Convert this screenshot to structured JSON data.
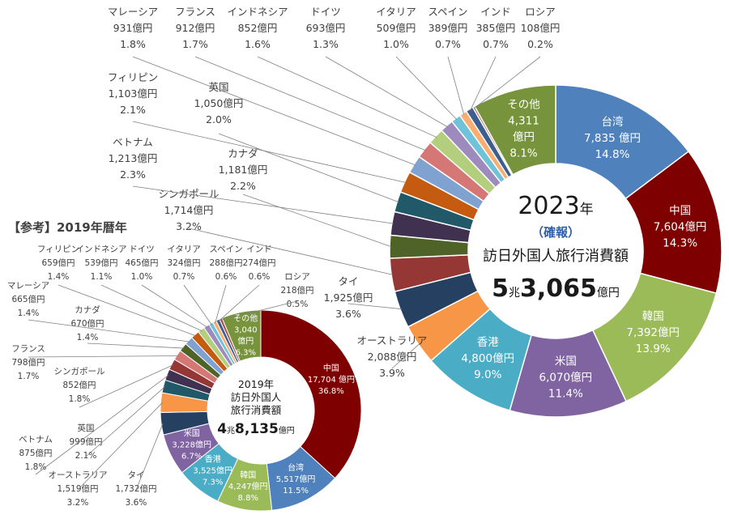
{
  "chart_data": [
    {
      "type": "pie",
      "variant": "donut",
      "unit": "億円",
      "center": {
        "year": "2023",
        "year_suffix": "年",
        "status": "（確報）",
        "title": "訪日外国人旅行消費額",
        "total_cho": "5",
        "cho": "兆",
        "total_rest": "3,065",
        "total_unit": "億円"
      },
      "slices": [
        {
          "name": "台湾",
          "value_label": "7,835 億円",
          "pct_label": "14.8%",
          "value": 7835,
          "pct": 14.8,
          "color": "#4f81bd",
          "label_pos": "inside"
        },
        {
          "name": "中国",
          "value_label": "7,604億円",
          "pct_label": "14.3%",
          "value": 7604,
          "pct": 14.3,
          "color": "#7f0000",
          "label_pos": "inside"
        },
        {
          "name": "韓国",
          "value_label": "7,392億円",
          "pct_label": "13.9%",
          "value": 7392,
          "pct": 13.9,
          "color": "#9bbb59",
          "label_pos": "inside"
        },
        {
          "name": "米国",
          "value_label": "6,070億円",
          "pct_label": "11.4%",
          "value": 6070,
          "pct": 11.4,
          "color": "#8064a2",
          "label_pos": "inside"
        },
        {
          "name": "香港",
          "value_label": "4,800億円",
          "pct_label": "9.0%",
          "value": 4800,
          "pct": 9.0,
          "color": "#4bacc6",
          "label_pos": "inside"
        },
        {
          "name": "オーストラリア",
          "value_label": "2,088億円",
          "pct_label": "3.9%",
          "value": 2088,
          "pct": 3.9,
          "color": "#f79646",
          "label_pos": "outside"
        },
        {
          "name": "タイ",
          "value_label": "1,925億円",
          "pct_label": "3.6%",
          "value": 1925,
          "pct": 3.6,
          "color": "#254061",
          "label_pos": "outside"
        },
        {
          "name": "シンガポール",
          "value_label": "1,714億円",
          "pct_label": "3.2%",
          "value": 1714,
          "pct": 3.2,
          "color": "#953735",
          "label_pos": "outside"
        },
        {
          "name": "カナダ",
          "value_label": "1,181億円",
          "pct_label": "2.2%",
          "value": 1181,
          "pct": 2.2,
          "color": "#4f6228",
          "label_pos": "outside"
        },
        {
          "name": "ベトナム",
          "value_label": "1,213億円",
          "pct_label": "2.3%",
          "value": 1213,
          "pct": 2.3,
          "color": "#403151",
          "label_pos": "outside"
        },
        {
          "name": "英国",
          "value_label": "1,050億円",
          "pct_label": "2.0%",
          "value": 1050,
          "pct": 2.0,
          "color": "#215968",
          "label_pos": "outside"
        },
        {
          "name": "フィリピン",
          "value_label": "1,103億円",
          "pct_label": "2.1%",
          "value": 1103,
          "pct": 2.1,
          "color": "#c55a11",
          "label_pos": "outside"
        },
        {
          "name": "マレーシア",
          "value_label": "931億円",
          "pct_label": "1.8%",
          "value": 931,
          "pct": 1.8,
          "color": "#7fa2d0",
          "label_pos": "outside"
        },
        {
          "name": "フランス",
          "value_label": "912億円",
          "pct_label": "1.7%",
          "value": 912,
          "pct": 1.7,
          "color": "#d47775",
          "label_pos": "outside"
        },
        {
          "name": "インドネシア",
          "value_label": "852億円",
          "pct_label": "1.6%",
          "value": 852,
          "pct": 1.6,
          "color": "#b3cf7d",
          "label_pos": "outside"
        },
        {
          "name": "ドイツ",
          "value_label": "693億円",
          "pct_label": "1.3%",
          "value": 693,
          "pct": 1.3,
          "color": "#9d8bbd",
          "label_pos": "outside"
        },
        {
          "name": "イタリア",
          "value_label": "509億円",
          "pct_label": "1.0%",
          "value": 509,
          "pct": 1.0,
          "color": "#6fc3d8",
          "label_pos": "outside"
        },
        {
          "name": "スペイン",
          "value_label": "389億円",
          "pct_label": "0.7%",
          "value": 389,
          "pct": 0.7,
          "color": "#f9ad6e",
          "label_pos": "outside"
        },
        {
          "name": "インド",
          "value_label": "385億円",
          "pct_label": "0.7%",
          "value": 385,
          "pct": 0.7,
          "color": "#3d5e8e",
          "label_pos": "outside"
        },
        {
          "name": "ロシア",
          "value_label": "108億円",
          "pct_label": "0.2%",
          "value": 108,
          "pct": 0.2,
          "color": "#a6534f",
          "label_pos": "outside"
        },
        {
          "name": "その他",
          "value_label": "4,311\n億円",
          "pct_label": "8.1%",
          "value": 4311,
          "pct": 8.1,
          "color": "#77933c",
          "label_pos": "inside"
        }
      ]
    },
    {
      "type": "pie",
      "variant": "donut",
      "unit": "億円",
      "heading": "【参考】2019年暦年",
      "center": {
        "year": "2019年",
        "title_lines": [
          "訪日外国人",
          "旅行消費額"
        ],
        "total_cho": "4",
        "cho": "兆",
        "total_rest": "8,135",
        "total_unit": "億円"
      },
      "slices": [
        {
          "name": "中国",
          "value_label": "17,704 億円",
          "pct_label": "36.8%",
          "value": 17704,
          "pct": 36.8,
          "color": "#7f0000",
          "label_pos": "inside"
        },
        {
          "name": "台湾",
          "value_label": "5,517億円",
          "pct_label": "11.5%",
          "value": 5517,
          "pct": 11.5,
          "color": "#4f81bd",
          "label_pos": "inside"
        },
        {
          "name": "韓国",
          "value_label": "4,247億円",
          "pct_label": "8.8%",
          "value": 4247,
          "pct": 8.8,
          "color": "#9bbb59",
          "label_pos": "inside"
        },
        {
          "name": "香港",
          "value_label": "3,525億円",
          "pct_label": "7.3%",
          "value": 3525,
          "pct": 7.3,
          "color": "#4bacc6",
          "label_pos": "inside"
        },
        {
          "name": "米国",
          "value_label": "3,228億円",
          "pct_label": "6.7%",
          "value": 3228,
          "pct": 6.7,
          "color": "#8064a2",
          "label_pos": "inside"
        },
        {
          "name": "タイ",
          "value_label": "1,732億円",
          "pct_label": "3.6%",
          "value": 1732,
          "pct": 3.6,
          "color": "#254061",
          "label_pos": "outside"
        },
        {
          "name": "オーストラリア",
          "value_label": "1,519億円",
          "pct_label": "3.2%",
          "value": 1519,
          "pct": 3.2,
          "color": "#f79646",
          "label_pos": "outside"
        },
        {
          "name": "英国",
          "value_label": "999億円",
          "pct_label": "2.1%",
          "value": 999,
          "pct": 2.1,
          "color": "#215968",
          "label_pos": "outside"
        },
        {
          "name": "ベトナム",
          "value_label": "875億円",
          "pct_label": "1.8%",
          "value": 875,
          "pct": 1.8,
          "color": "#403151",
          "label_pos": "outside"
        },
        {
          "name": "シンガポール",
          "value_label": "852億円",
          "pct_label": "1.8%",
          "value": 852,
          "pct": 1.8,
          "color": "#953735",
          "label_pos": "outside"
        },
        {
          "name": "フランス",
          "value_label": "798億円",
          "pct_label": "1.7%",
          "value": 798,
          "pct": 1.7,
          "color": "#d47775",
          "label_pos": "outside"
        },
        {
          "name": "カナダ",
          "value_label": "670億円",
          "pct_label": "1.4%",
          "value": 670,
          "pct": 1.4,
          "color": "#4f6228",
          "label_pos": "outside"
        },
        {
          "name": "マレーシア",
          "value_label": "665億円",
          "pct_label": "1.4%",
          "value": 665,
          "pct": 1.4,
          "color": "#7fa2d0",
          "label_pos": "outside"
        },
        {
          "name": "フィリピン",
          "value_label": "659億円",
          "pct_label": "1.4%",
          "value": 659,
          "pct": 1.4,
          "color": "#c55a11",
          "label_pos": "outside"
        },
        {
          "name": "インドネシア",
          "value_label": "539億円",
          "pct_label": "1.1%",
          "value": 539,
          "pct": 1.1,
          "color": "#b3cf7d",
          "label_pos": "outside"
        },
        {
          "name": "ドイツ",
          "value_label": "465億円",
          "pct_label": "1.0%",
          "value": 465,
          "pct": 1.0,
          "color": "#9d8bbd",
          "label_pos": "outside"
        },
        {
          "name": "イタリア",
          "value_label": "324億円",
          "pct_label": "0.7%",
          "value": 324,
          "pct": 0.7,
          "color": "#6fc3d8",
          "label_pos": "outside"
        },
        {
          "name": "スペイン",
          "value_label": "288億円",
          "pct_label": "0.6%",
          "value": 288,
          "pct": 0.6,
          "color": "#f9ad6e",
          "label_pos": "outside"
        },
        {
          "name": "インド",
          "value_label": "274億円",
          "pct_label": "0.6%",
          "value": 274,
          "pct": 0.6,
          "color": "#3d5e8e",
          "label_pos": "outside"
        },
        {
          "name": "ロシア",
          "value_label": "218億円",
          "pct_label": "0.5%",
          "value": 218,
          "pct": 0.5,
          "color": "#a6534f",
          "label_pos": "outside"
        },
        {
          "name": "その他",
          "value_label": "3,040\n億円",
          "pct_label": "6.3%",
          "value": 3040,
          "pct": 6.3,
          "color": "#77933c",
          "label_pos": "inside"
        }
      ]
    }
  ]
}
